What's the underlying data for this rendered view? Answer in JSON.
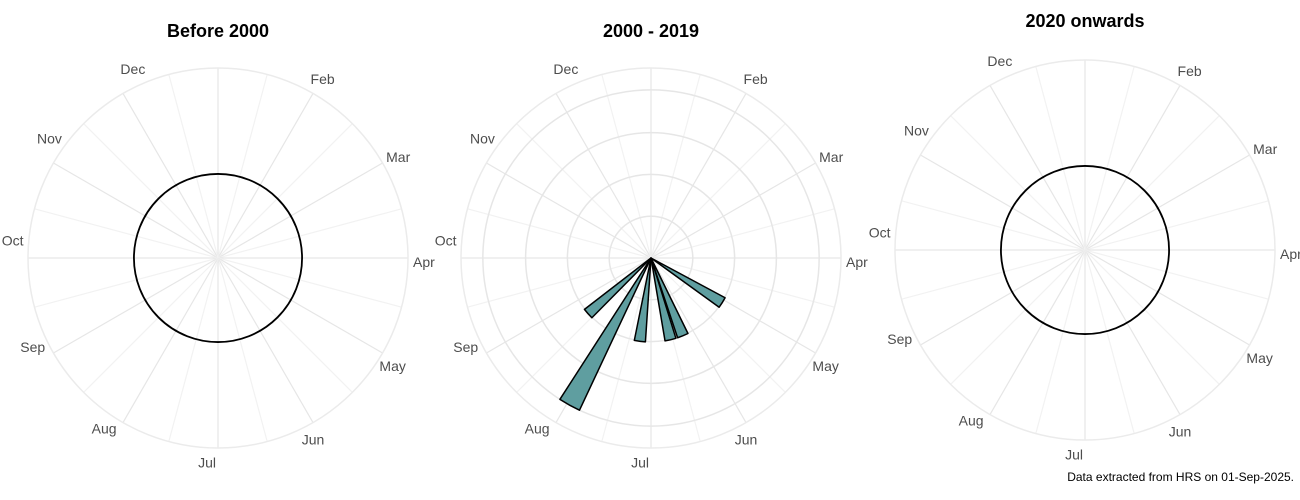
{
  "chart_data": [
    {
      "type": "polar_bar",
      "title": "Before 2000",
      "xlim": [
        1,
        12.8
      ],
      "xticks": [
        {
          "value": 2,
          "label": "Feb"
        },
        {
          "value": 3,
          "label": "Mar"
        },
        {
          "value": 4,
          "label": "Apr"
        },
        {
          "value": 5,
          "label": "May"
        },
        {
          "value": 6,
          "label": "Jun"
        },
        {
          "value": 7,
          "label": "Jul"
        },
        {
          "value": 8,
          "label": "Aug"
        },
        {
          "value": 9,
          "label": "Sep"
        },
        {
          "value": 10,
          "label": "Oct"
        },
        {
          "value": 11,
          "label": "Nov"
        },
        {
          "value": 12,
          "label": "Dec"
        }
      ],
      "ylim": [
        0,
        2.26
      ],
      "x": [],
      "values": [],
      "ring": 1,
      "color": "#5f9ea0"
    },
    {
      "type": "polar_bar",
      "title": "2000 - 2019",
      "xlim": [
        1,
        12.8
      ],
      "xticks": [
        {
          "value": 2,
          "label": "Feb"
        },
        {
          "value": 3,
          "label": "Mar"
        },
        {
          "value": 4,
          "label": "Apr"
        },
        {
          "value": 5,
          "label": "May"
        },
        {
          "value": 6,
          "label": "Jun"
        },
        {
          "value": 7,
          "label": "Jul"
        },
        {
          "value": 8,
          "label": "Aug"
        },
        {
          "value": 9,
          "label": "Sep"
        },
        {
          "value": 10,
          "label": "Oct"
        },
        {
          "value": 11,
          "label": "Nov"
        },
        {
          "value": 12,
          "label": "Dec"
        }
      ],
      "ylim": [
        0,
        2.26
      ],
      "x": [
        5.0,
        6.17,
        6.46,
        7.15,
        7.85,
        8.49
      ],
      "values": [
        1,
        1,
        1,
        1,
        2,
        1
      ],
      "color": "#5f9ea0"
    },
    {
      "type": "polar_bar",
      "title": "2020 onwards",
      "xlim": [
        1,
        12.8
      ],
      "xticks": [
        {
          "value": 2,
          "label": "Feb"
        },
        {
          "value": 3,
          "label": "Mar"
        },
        {
          "value": 4,
          "label": "Apr"
        },
        {
          "value": 5,
          "label": "May"
        },
        {
          "value": 6,
          "label": "Jun"
        },
        {
          "value": 7,
          "label": "Jul"
        },
        {
          "value": 8,
          "label": "Aug"
        },
        {
          "value": 9,
          "label": "Sep"
        },
        {
          "value": 10,
          "label": "Oct"
        },
        {
          "value": 11,
          "label": "Nov"
        },
        {
          "value": 12,
          "label": "Dec"
        }
      ],
      "ylim": [
        0,
        2.26
      ],
      "x": [],
      "values": [],
      "ring": 1,
      "color": "#5f9ea0"
    }
  ],
  "caption": "Data extracted from HRS on 01-Sep-2025."
}
